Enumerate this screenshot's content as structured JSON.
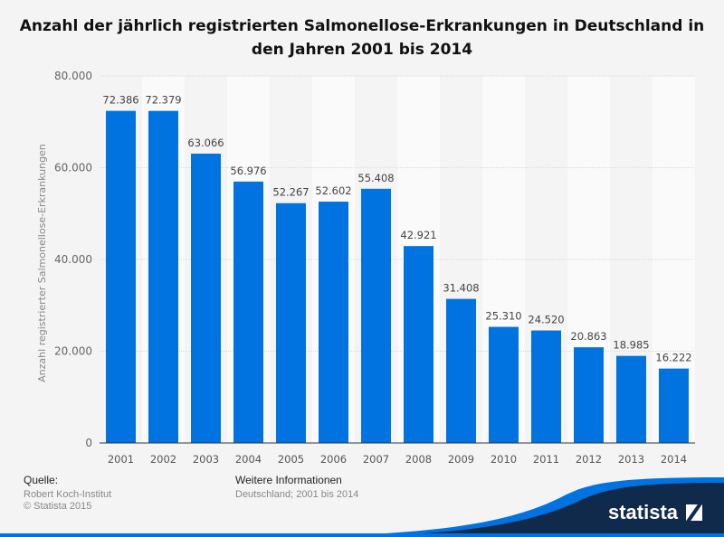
{
  "title": "Anzahl der jährlich registrierten Salmonellose-Erkrankungen in Deutschland in den Jahren 2001 bis 2014",
  "footer": {
    "source_label": "Quelle:",
    "source": "Robert Koch-Institut",
    "copyright": "© Statista 2015",
    "info_label": "Weitere Informationen",
    "info": "Deutschland; 2001 bis 2014",
    "logo": "statista"
  },
  "chart_data": {
    "type": "bar",
    "title": "Anzahl der jährlich registrierten Salmonellose-Erkrankungen in Deutschland in den Jahren 2001 bis 2014",
    "xlabel": "",
    "ylabel": "Anzahl registrierter Salmonellose-Erkrankungen",
    "categories": [
      "2001",
      "2002",
      "2003",
      "2004",
      "2005",
      "2006",
      "2007",
      "2008",
      "2009",
      "2010",
      "2011",
      "2012",
      "2013",
      "2014"
    ],
    "values": [
      72386,
      72379,
      63066,
      56976,
      52267,
      52602,
      55408,
      42921,
      31408,
      25310,
      24520,
      20863,
      18985,
      16222
    ],
    "value_labels": [
      "72.386",
      "72.379",
      "63.066",
      "56.976",
      "52.267",
      "52.602",
      "55.408",
      "42.921",
      "31.408",
      "25.310",
      "24.520",
      "20.863",
      "18.985",
      "16.222"
    ],
    "ylim": [
      0,
      80000
    ],
    "yticks": [
      0,
      20000,
      40000,
      60000,
      80000
    ],
    "ytick_labels": [
      "0",
      "20.000",
      "40.000",
      "60.000",
      "80.000"
    ],
    "grid": true,
    "bar_color": "#0073e0"
  }
}
